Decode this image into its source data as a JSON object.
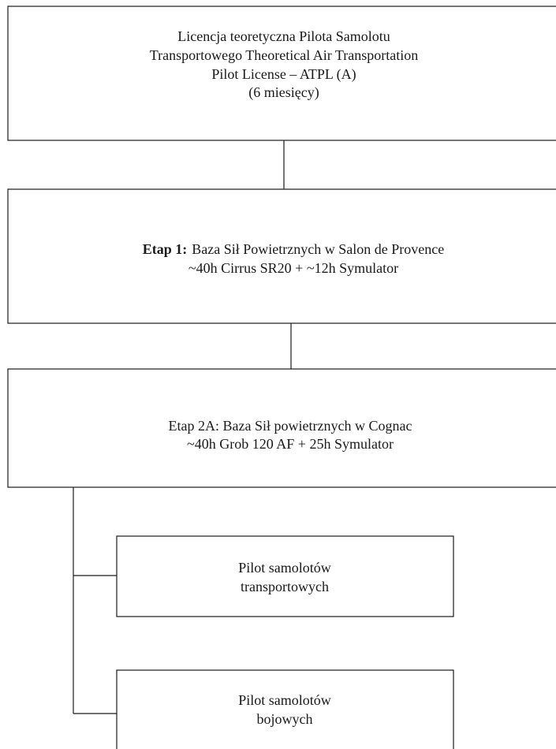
{
  "nodes": [
    {
      "lines": [
        "Licencja teoretyczna Pilota Samolotu",
        "Transportowego Theoretical Air Transportation",
        "Pilot License – ATPL (A)",
        "(6 miesięcy)"
      ]
    },
    {
      "bold": "Etap 1:",
      "lines": [
        "Baza Sił Powietrznych w Salon de Provence",
        "~40h Cirrus SR20 + ~12h Symulator"
      ]
    },
    {
      "lines": [
        "Etap 2A: Baza Sił powietrznych w Cognac",
        "~40h Grob 120 AF + 25h Symulator"
      ]
    },
    {
      "lines": [
        "Pilot samolotów",
        "transportowych"
      ]
    },
    {
      "lines": [
        "Pilot samolotów",
        "bojowych"
      ]
    }
  ]
}
